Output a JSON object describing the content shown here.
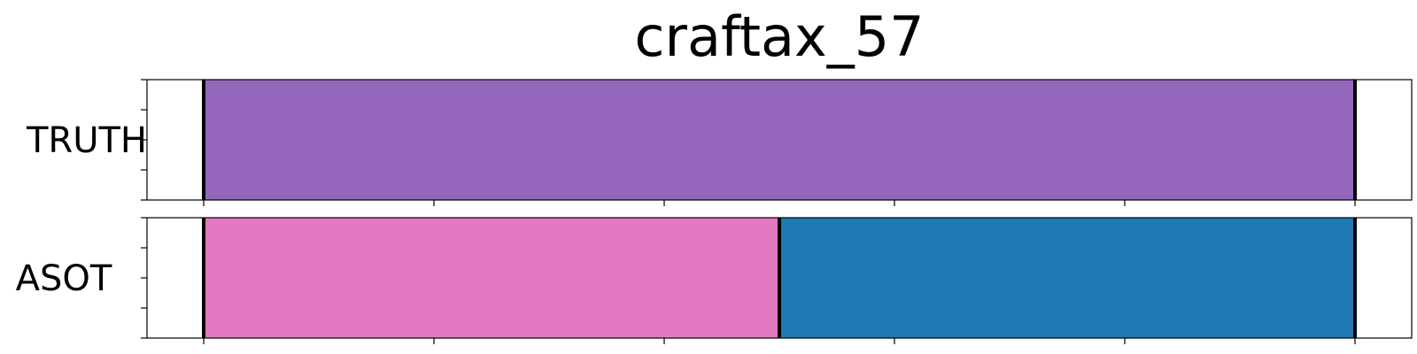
{
  "chart_data": {
    "type": "segmentation",
    "title": "craftax_57",
    "x_ticks": 6,
    "y_ticks": 5,
    "grid": false,
    "rows": [
      {
        "label": "TRUTH",
        "segments": [
          {
            "start": 0.0,
            "end": 1.0,
            "color": "#9467bd"
          }
        ]
      },
      {
        "label": "ASOT",
        "segments": [
          {
            "start": 0.0,
            "end": 0.5,
            "color": "#e377c2"
          },
          {
            "start": 0.5,
            "end": 1.0,
            "color": "#1f77b4"
          }
        ]
      }
    ]
  }
}
